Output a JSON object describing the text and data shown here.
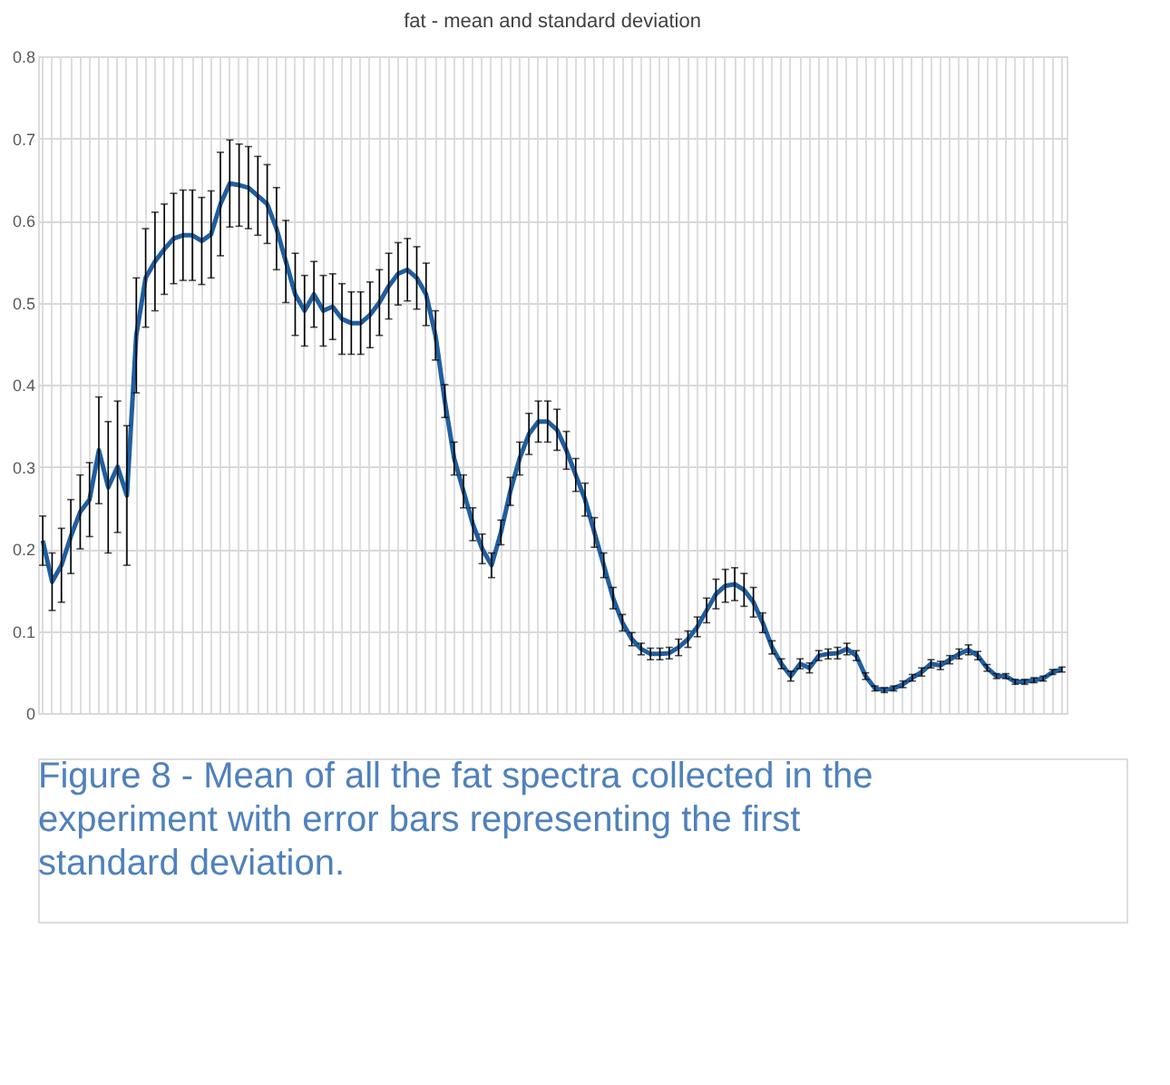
{
  "chart_data": {
    "type": "line",
    "title": "fat - mean and standard deviation",
    "categories": [
      null,
      null,
      null,
      null,
      null,
      null,
      null,
      null,
      null,
      null,
      null,
      null,
      null,
      null,
      null,
      null,
      null,
      null,
      null,
      null,
      null,
      null,
      null,
      null,
      null,
      null,
      null,
      null,
      null,
      null,
      null,
      null,
      null,
      null,
      null,
      null,
      null,
      null,
      null,
      null,
      null,
      null,
      null,
      null,
      null,
      null,
      null,
      null,
      null,
      null,
      null,
      null,
      null,
      null,
      null,
      null,
      null,
      null,
      null,
      null,
      null,
      null,
      null,
      null,
      null,
      null,
      null,
      null,
      null,
      null,
      null,
      null,
      null,
      null,
      null,
      null,
      null,
      null,
      null,
      null,
      null,
      null,
      null,
      null,
      null,
      null,
      null,
      null,
      null,
      null,
      null,
      null,
      null,
      null,
      null,
      null,
      null,
      null,
      null,
      null,
      null,
      null,
      null,
      null,
      null,
      null,
      null,
      null,
      null,
      null
    ],
    "series": [
      {
        "color": "#1f5fa0",
        "values": [
          0.21,
          0.16,
          0.18,
          0.215,
          0.245,
          0.26,
          0.32,
          0.275,
          0.3,
          0.265,
          0.46,
          0.53,
          0.55,
          0.565,
          0.578,
          0.582,
          0.582,
          0.575,
          0.583,
          0.62,
          0.645,
          0.643,
          0.64,
          0.63,
          0.62,
          0.59,
          0.55,
          0.51,
          0.49,
          0.51,
          0.49,
          0.495,
          0.48,
          0.475,
          0.475,
          0.485,
          0.5,
          0.52,
          0.535,
          0.54,
          0.53,
          0.51,
          0.46,
          0.38,
          0.31,
          0.27,
          0.23,
          0.2,
          0.18,
          0.22,
          0.27,
          0.31,
          0.34,
          0.355,
          0.355,
          0.345,
          0.32,
          0.29,
          0.26,
          0.22,
          0.18,
          0.14,
          0.11,
          0.09,
          0.078,
          0.072,
          0.072,
          0.073,
          0.08,
          0.09,
          0.105,
          0.125,
          0.145,
          0.155,
          0.157,
          0.15,
          0.135,
          0.11,
          0.08,
          0.06,
          0.045,
          0.06,
          0.055,
          0.07,
          0.072,
          0.073,
          0.078,
          0.07,
          0.045,
          0.03,
          0.028,
          0.03,
          0.035,
          0.043,
          0.05,
          0.06,
          0.058,
          0.065,
          0.072,
          0.077,
          0.07,
          0.055,
          0.045,
          0.045,
          0.038,
          0.038,
          0.04,
          0.042,
          0.05,
          0.053
        ],
        "errors": [
          0.03,
          0.035,
          0.045,
          0.045,
          0.045,
          0.045,
          0.065,
          0.08,
          0.08,
          0.085,
          0.07,
          0.06,
          0.06,
          0.055,
          0.055,
          0.055,
          0.055,
          0.053,
          0.053,
          0.063,
          0.053,
          0.05,
          0.05,
          0.048,
          0.048,
          0.05,
          0.05,
          0.05,
          0.043,
          0.04,
          0.043,
          0.04,
          0.043,
          0.038,
          0.038,
          0.04,
          0.04,
          0.04,
          0.038,
          0.038,
          0.038,
          0.038,
          0.03,
          0.02,
          0.02,
          0.02,
          0.02,
          0.018,
          0.015,
          0.015,
          0.017,
          0.02,
          0.025,
          0.025,
          0.025,
          0.025,
          0.023,
          0.02,
          0.02,
          0.018,
          0.015,
          0.013,
          0.01,
          0.008,
          0.007,
          0.007,
          0.007,
          0.007,
          0.01,
          0.01,
          0.012,
          0.015,
          0.018,
          0.02,
          0.02,
          0.02,
          0.018,
          0.012,
          0.008,
          0.006,
          0.006,
          0.006,
          0.006,
          0.006,
          0.006,
          0.007,
          0.007,
          0.006,
          0.004,
          0.003,
          0.003,
          0.003,
          0.004,
          0.004,
          0.005,
          0.005,
          0.005,
          0.005,
          0.006,
          0.006,
          0.005,
          0.004,
          0.003,
          0.003,
          0.003,
          0.003,
          0.003,
          0.003,
          0.003,
          0.003
        ]
      }
    ],
    "ylim": [
      0,
      0.8
    ],
    "yticks": [
      0,
      0.1,
      0.2,
      0.3,
      0.4,
      0.5,
      0.6,
      0.7,
      0.8
    ],
    "grid": true,
    "tick_labels": "y",
    "marker": "none",
    "line_style": "solid",
    "annotations": [
      "Figure 8 - Mean of all the fat spectra collected in the experiment with error bars representing the first standard deviation."
    ]
  }
}
